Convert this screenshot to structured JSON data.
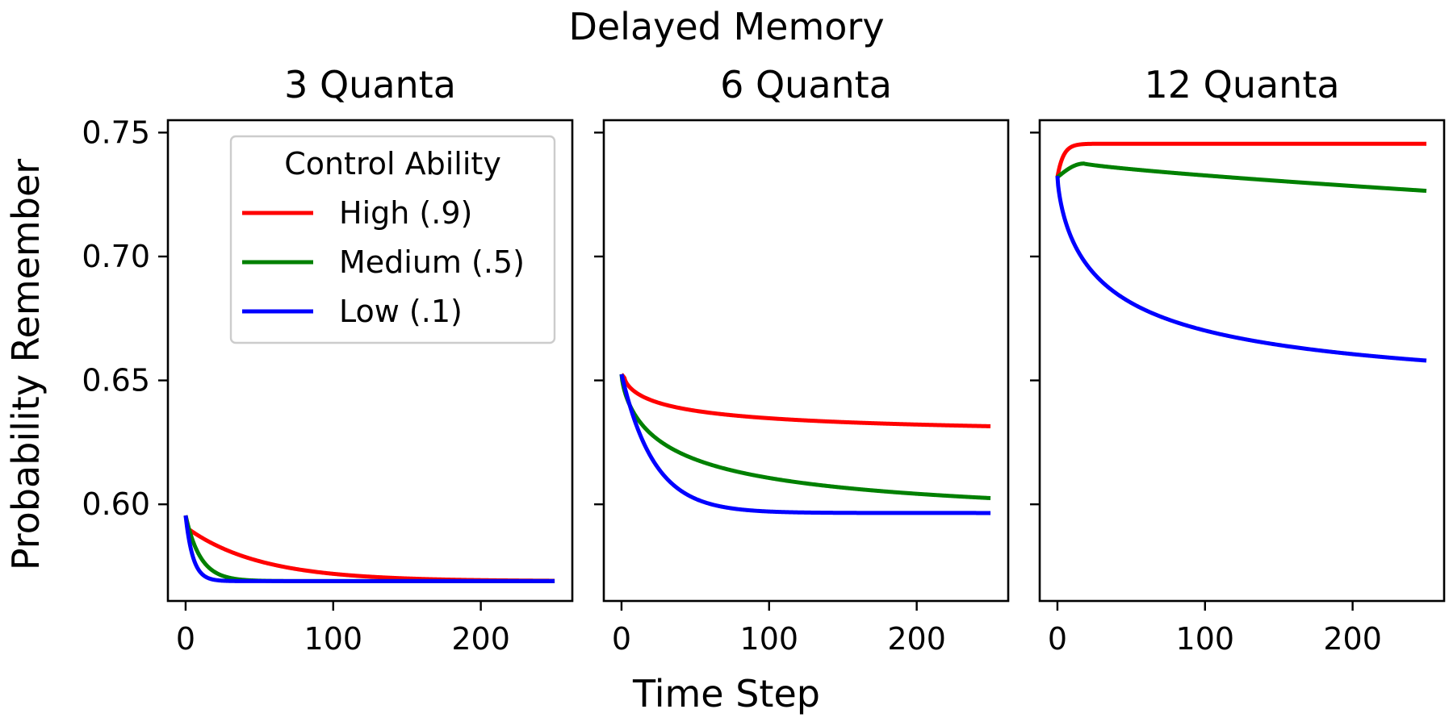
{
  "figure": {
    "suptitle": "Delayed Memory",
    "xlabel": "Time Step",
    "ylabel": "Probability Remember"
  },
  "legend": {
    "title": "Control Ability",
    "entries": [
      {
        "label": "High (.9)",
        "color": "#ff0000"
      },
      {
        "label": "Medium (.5)",
        "color": "#008000"
      },
      {
        "label": "Low (.1)",
        "color": "#0000ff"
      }
    ]
  },
  "chart_data": [
    {
      "type": "line",
      "title": "3 Quanta",
      "xlabel": "Time Step",
      "ylabel": "Probability Remember",
      "xlim": [
        -12,
        262
      ],
      "ylim": [
        0.561,
        0.755
      ],
      "xticks": [
        0,
        100,
        200
      ],
      "yticks": [
        0.6,
        0.65,
        0.7,
        0.75
      ],
      "ytick_labels": [
        "0.60",
        "0.65",
        "0.70",
        "0.75"
      ],
      "legend_position": "upper right",
      "series": [
        {
          "name": "High (.9)",
          "color": "#ff0000",
          "start": 0.5955,
          "x1": 2,
          "y1": 0.59,
          "asymptote": 0.569,
          "tau": 50
        },
        {
          "name": "Medium (.5)",
          "color": "#008000",
          "start": 0.5955,
          "asymptote": 0.569,
          "tau": 10
        },
        {
          "name": "Low (.1)",
          "color": "#0000ff",
          "start": 0.5955,
          "asymptote": 0.569,
          "tau": 5
        }
      ]
    },
    {
      "type": "line",
      "title": "6 Quanta",
      "xlabel": "Time Step",
      "ylabel": "",
      "xlim": [
        -12,
        262
      ],
      "ylim": [
        0.561,
        0.755
      ],
      "xticks": [
        0,
        100,
        200
      ],
      "yticks": [
        0.6,
        0.65,
        0.7,
        0.75
      ],
      "ytick_labels": [],
      "series": [
        {
          "name": "High (.9)",
          "color": "#ff0000",
          "start": 0.6525,
          "x1": 2,
          "y1": 0.651,
          "shape": "power",
          "end": 0.6315
        },
        {
          "name": "Medium (.5)",
          "color": "#008000",
          "start": 0.6525,
          "shape": "power",
          "end": 0.6025
        },
        {
          "name": "Low (.1)",
          "color": "#0000ff",
          "start": 0.6525,
          "asymptote": 0.5965,
          "tau": 22
        }
      ]
    },
    {
      "type": "line",
      "title": "12 Quanta",
      "xlabel": "Time Step",
      "ylabel": "",
      "xlim": [
        -12,
        262
      ],
      "ylim": [
        0.561,
        0.755
      ],
      "xticks": [
        0,
        100,
        200
      ],
      "yticks": [
        0.6,
        0.65,
        0.7,
        0.75
      ],
      "ytick_labels": [],
      "series": [
        {
          "name": "High (.9)",
          "color": "#ff0000",
          "start": 0.732,
          "shape": "rise",
          "peak": 0.7455,
          "tau": 4,
          "end": 0.7455
        },
        {
          "name": "Medium (.5)",
          "color": "#008000",
          "start": 0.732,
          "shape": "rise-decay",
          "peak_x": 18,
          "peak": 0.7375,
          "end": 0.7265
        },
        {
          "name": "Low (.1)",
          "color": "#0000ff",
          "start": 0.7325,
          "shape": "power",
          "end": 0.658
        }
      ]
    }
  ]
}
